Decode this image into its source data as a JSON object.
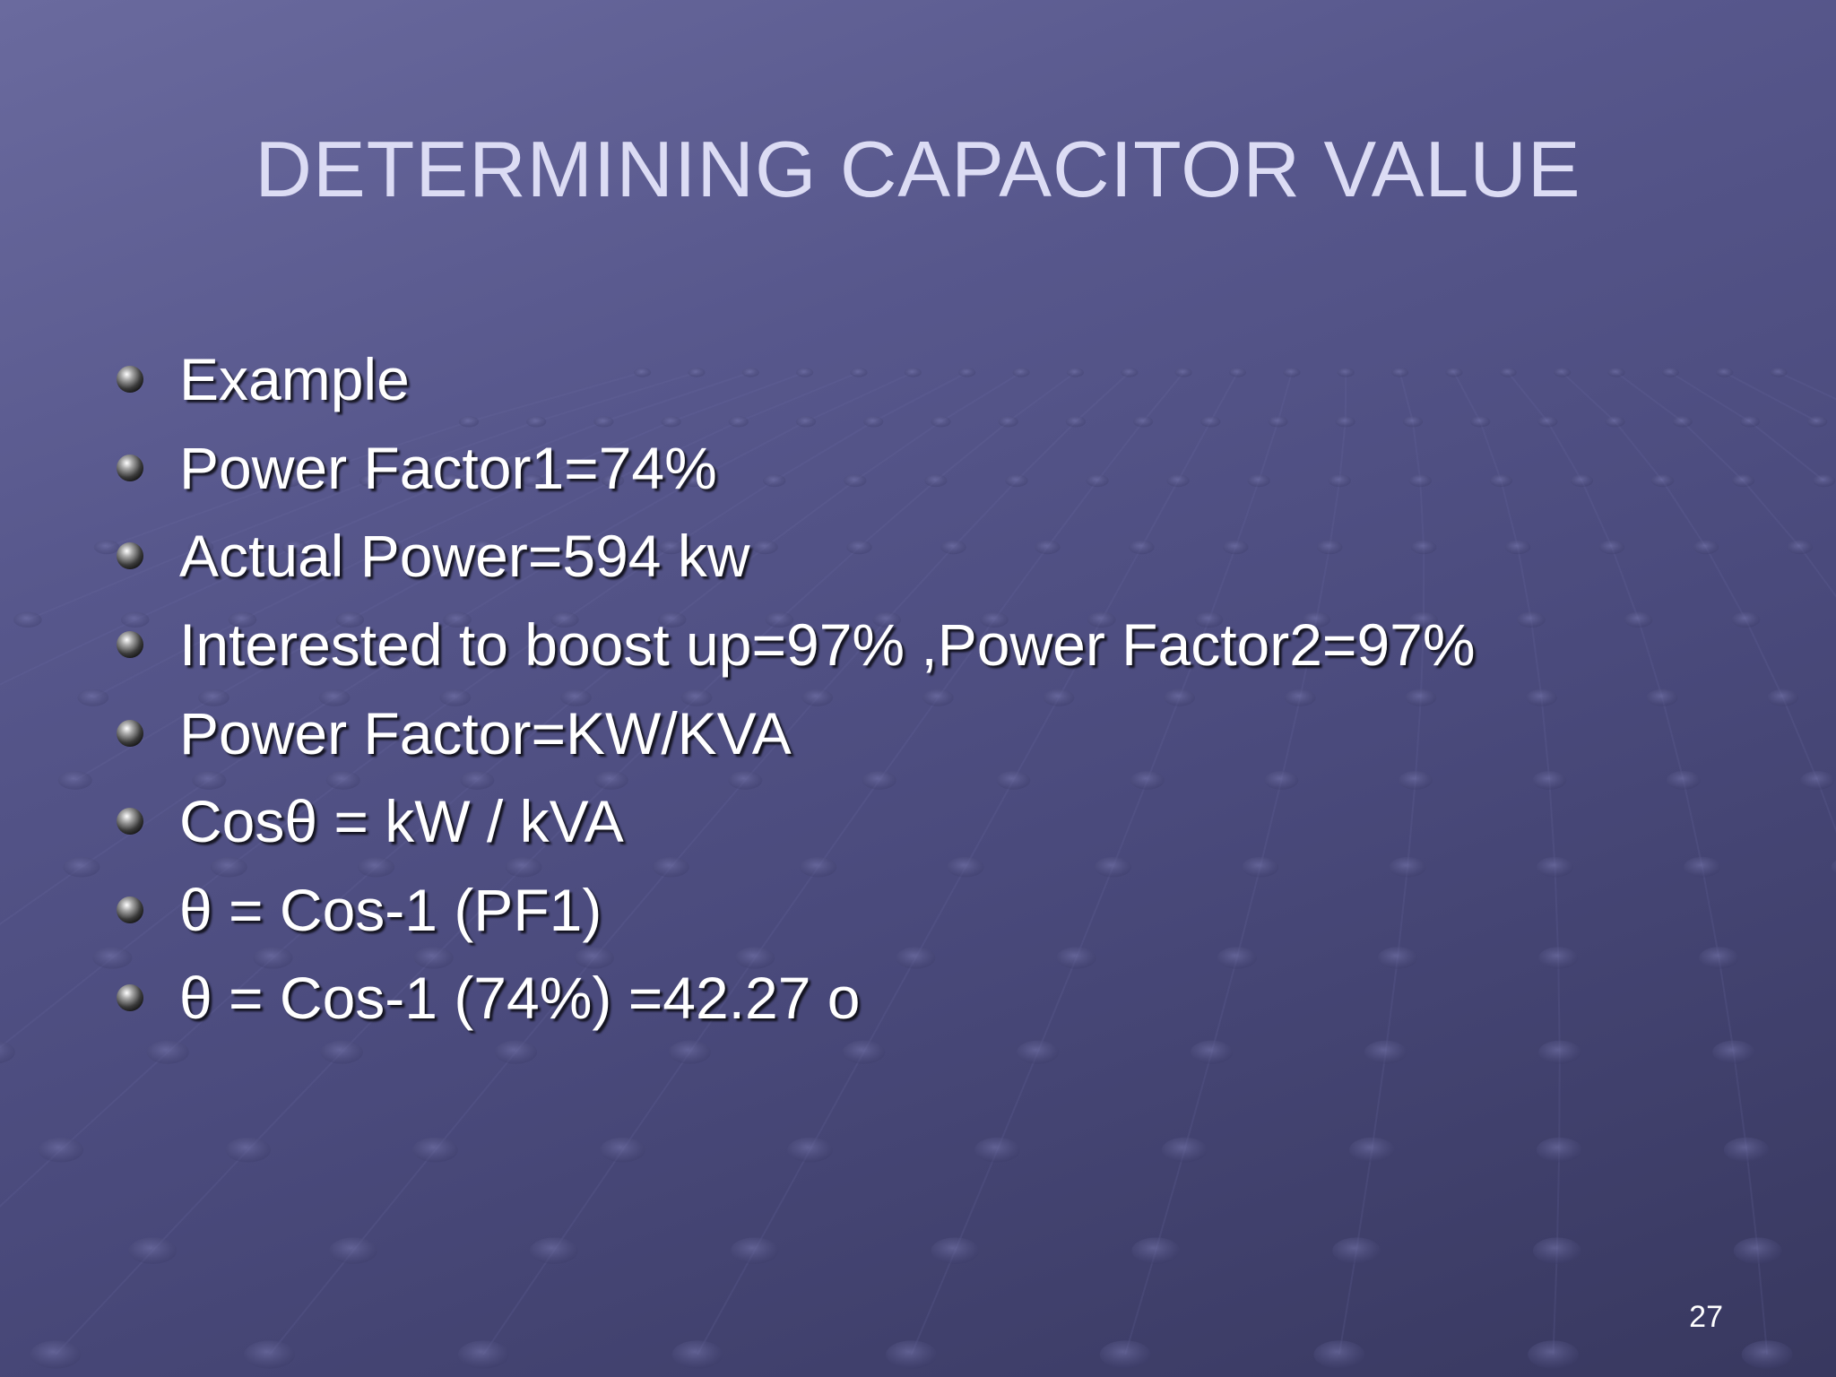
{
  "slide": {
    "title": "DETERMINING CAPACITOR VALUE",
    "bullets": [
      "Example",
      "Power Factor1=74%",
      "Actual Power=594 kw",
      "Interested to boost up=97% ,Power Factor2=97%",
      "Power Factor=KW/KVA",
      "Cosθ = kW / kVA",
      "θ = Cos-1 (PF1)",
      "θ = Cos-1 (74%) =42.27 o"
    ],
    "slide_number": "27"
  },
  "colors": {
    "background": "#57578c",
    "title": "#dcdcf4",
    "text": "#ffffff"
  }
}
